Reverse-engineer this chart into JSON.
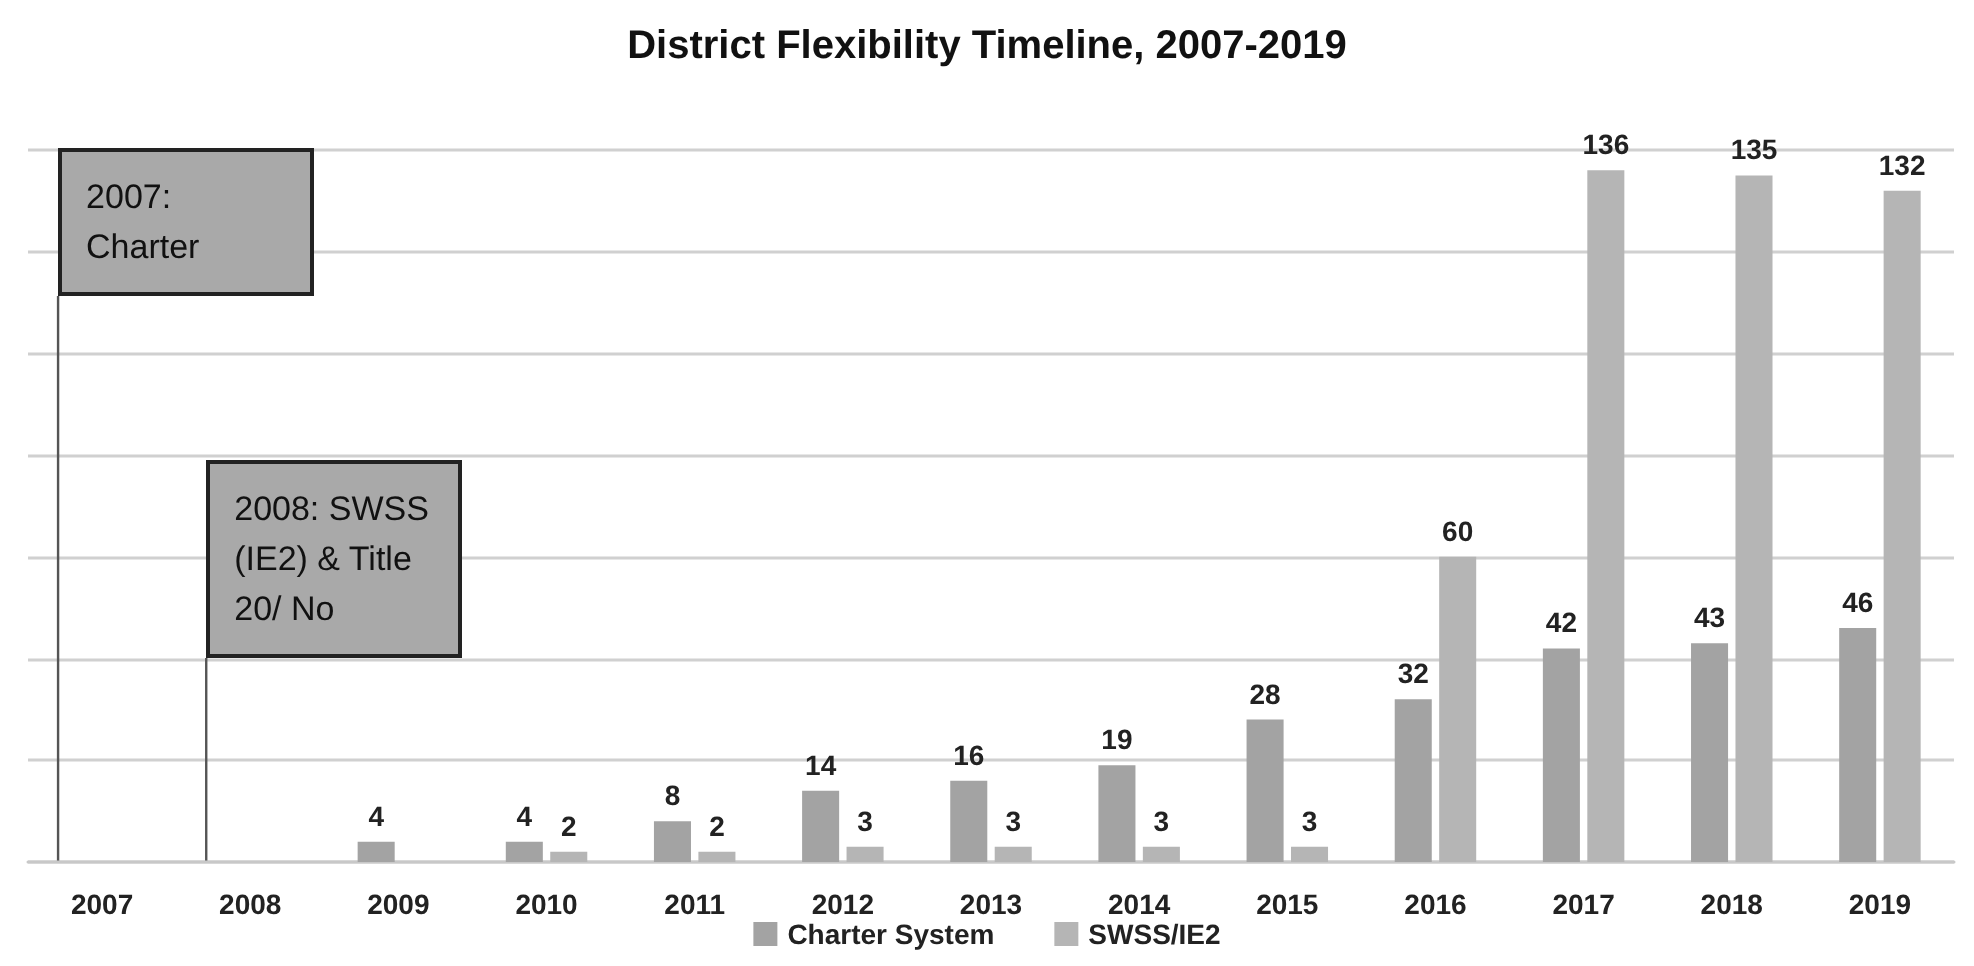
{
  "chart_data": {
    "type": "bar",
    "title": "District Flexibility Timeline, 2007-2019",
    "categories": [
      "2007",
      "2008",
      "2009",
      "2010",
      "2011",
      "2012",
      "2013",
      "2014",
      "2015",
      "2016",
      "2017",
      "2018",
      "2019"
    ],
    "series": [
      {
        "name": "Charter System",
        "color": "#a3a3a3",
        "values": [
          null,
          null,
          4,
          4,
          8,
          14,
          16,
          19,
          28,
          32,
          42,
          43,
          46
        ]
      },
      {
        "name": "SWSS/IE2",
        "color": "#b5b5b5",
        "values": [
          null,
          null,
          null,
          2,
          2,
          3,
          3,
          3,
          3,
          60,
          136,
          135,
          132
        ]
      }
    ],
    "ylim": [
      0,
      140
    ],
    "yticks": [
      {
        "value": 0,
        "label": null
      },
      {
        "value": 20,
        "label": null
      },
      {
        "value": 40,
        "label": null
      },
      {
        "value": 60,
        "label": null
      },
      {
        "value": 80,
        "label": null
      },
      {
        "value": 100,
        "label": null
      },
      {
        "value": 120,
        "label": null
      },
      {
        "value": 140,
        "label": null
      }
    ],
    "tick_labels": "x",
    "grid": "y",
    "legend": "bottom",
    "data_labels": true,
    "annotations": [
      "2007:\nCharter",
      "2008: SWSS\n(IE2) & Title\n20/ No"
    ]
  }
}
